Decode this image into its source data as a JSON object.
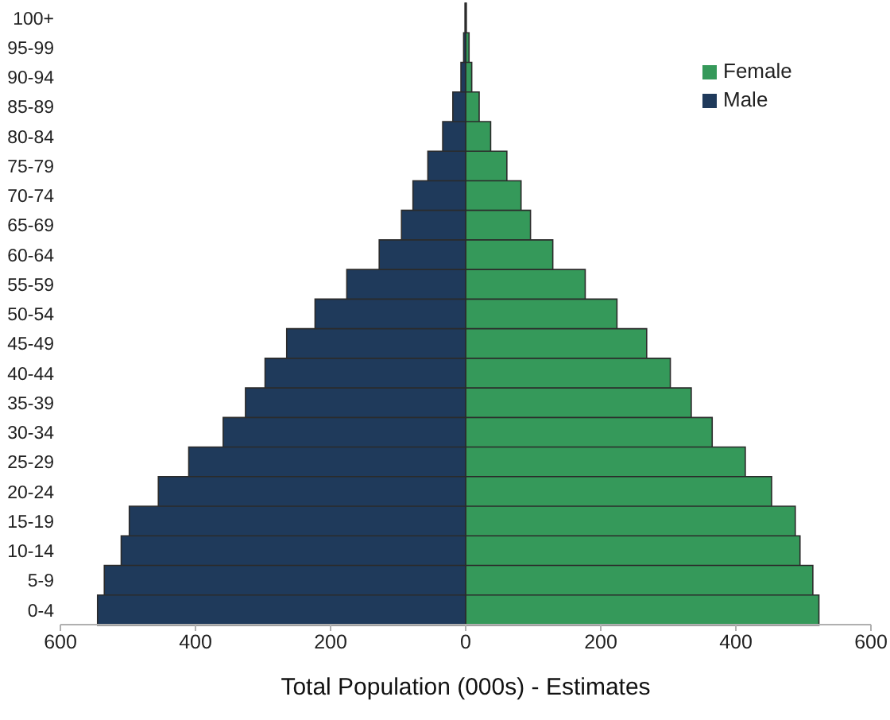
{
  "chart_data": {
    "type": "bar",
    "orientation": "horizontal",
    "stacked": true,
    "xlabel": "Total Population (000s) - Estimates",
    "categories": [
      "100+",
      "95-99",
      "90-94",
      "85-89",
      "80-84",
      "75-79",
      "70-74",
      "65-69",
      "60-64",
      "55-59",
      "50-54",
      "45-49",
      "40-44",
      "35-39",
      "30-34",
      "25-29",
      "20-24",
      "15-19",
      "10-14",
      "5-9",
      "0-4"
    ],
    "series": [
      {
        "name": "Female",
        "color": "#35995a",
        "values": [
          1,
          5,
          9,
          20,
          37,
          61,
          82,
          96,
          129,
          177,
          224,
          268,
          303,
          334,
          365,
          414,
          453,
          488,
          495,
          514,
          523
        ]
      },
      {
        "name": "Male",
        "color": "#1f3a5b",
        "values": [
          -1,
          -3,
          -7,
          -19,
          -34,
          -56,
          -78,
          -95,
          -128,
          -176,
          -223,
          -265,
          -297,
          -326,
          -359,
          -410,
          -455,
          -498,
          -510,
          -535,
          -545
        ]
      }
    ],
    "xlim": [
      -600,
      600
    ],
    "xticks": [
      {
        "value": -600,
        "label": "600"
      },
      {
        "value": -400,
        "label": "400"
      },
      {
        "value": -200,
        "label": "200"
      },
      0,
      200,
      400,
      600
    ],
    "legend": "top right"
  }
}
